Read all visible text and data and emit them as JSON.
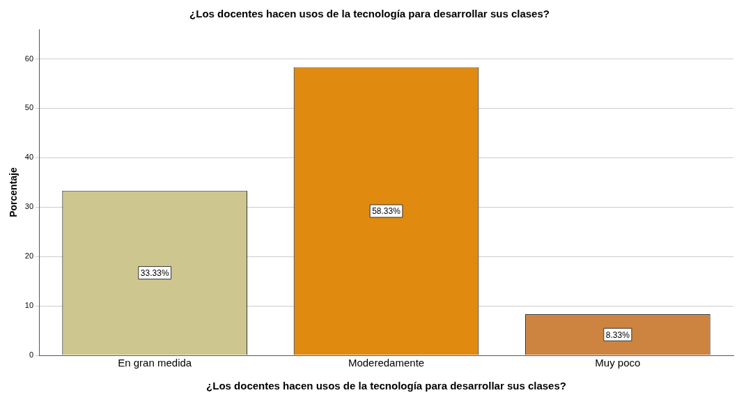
{
  "chart_data": {
    "type": "bar",
    "title": "¿Los docentes hacen usos de la tecnología para desarrollar sus clases?",
    "xlabel": "¿Los docentes hacen usos de la tecnología para desarrollar sus clases?",
    "ylabel": "Porcentaje",
    "categories": [
      "En gran medida",
      "Moderedamente",
      "Muy poco"
    ],
    "values": [
      33.33,
      58.33,
      8.33
    ],
    "colors": [
      "#cdc68e",
      "#e08a10",
      "#cd8440"
    ],
    "value_labels": [
      "33.33%",
      "58.33%",
      "8.33%"
    ],
    "ylim": [
      0,
      66
    ],
    "yticks": [
      0,
      10,
      20,
      30,
      40,
      50,
      60
    ],
    "grid": "y",
    "legend": false
  }
}
